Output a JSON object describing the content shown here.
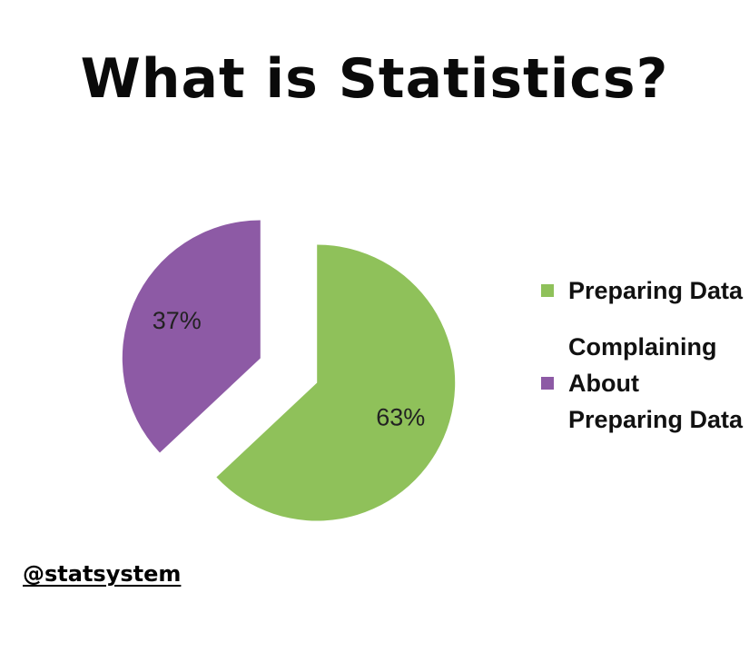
{
  "title": "What is Statistics?",
  "handle": "@statsystem",
  "colors": {
    "preparing": "#8fc15a",
    "complaining": "#8d5aa5"
  },
  "chart_data": {
    "type": "pie",
    "slices": [
      {
        "label": "Preparing Data",
        "value": 63,
        "display": "63%",
        "color": "#8fc15a"
      },
      {
        "label": "Complaining About Preparing Data",
        "value": 37,
        "display": "37%",
        "color": "#8d5aa5"
      }
    ],
    "legend": [
      {
        "label": "Preparing Data",
        "color": "#8fc15a"
      },
      {
        "label": "Complaining About Preparing Data",
        "color": "#8d5aa5"
      }
    ],
    "exploded": true,
    "start": "12 o'clock, clockwise",
    "legend_position": "right"
  }
}
